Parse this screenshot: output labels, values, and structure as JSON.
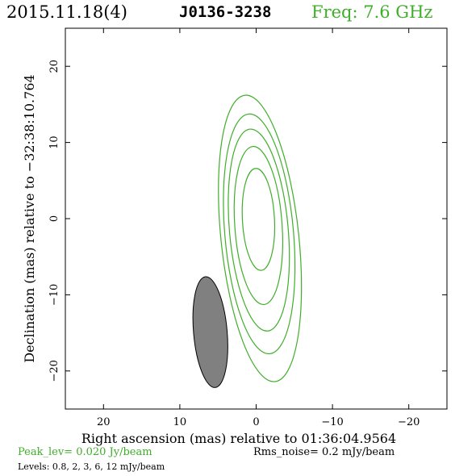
{
  "header": {
    "date": "2015.11.18(4)",
    "source": "J0136-3238",
    "freq": "Freq: 7.6 GHz"
  },
  "footer": {
    "peak": "Peak_lev=  0.020 Jy/beam",
    "rms": "Rms_noise=  0.2 mJy/beam",
    "levels": "Levels: 0.8,   2,   3,   6,  12 mJy/beam"
  },
  "colors": {
    "contour": "#3fae2a",
    "beam_fill": "#808080",
    "text": "#000000"
  },
  "chart_data": {
    "type": "contour",
    "xlabel": "Right ascension (mas) relative to 01:36:04.9564",
    "ylabel": "Declination (mas) relative to −32:38:10.764",
    "xlim": [
      25,
      -25
    ],
    "ylim": [
      -25,
      25
    ],
    "x_ticks": [
      "20",
      "10",
      "0",
      "−10",
      "−20"
    ],
    "x_tick_values": [
      20,
      10,
      0,
      -10,
      -20
    ],
    "y_ticks": [
      "20",
      "10",
      "0",
      "−10",
      "−20"
    ],
    "y_tick_values": [
      20,
      10,
      0,
      -10,
      -20
    ],
    "contour_levels_mJy": [
      0.8,
      2,
      3,
      6,
      12
    ],
    "contours": [
      {
        "level": 12,
        "cx": -0.3,
        "cy": -0.1,
        "ra": 2.1,
        "rb": 6.7,
        "tilt_deg": 3
      },
      {
        "level": 6,
        "cx": -0.3,
        "cy": -0.9,
        "ra": 3.1,
        "rb": 10.4,
        "tilt_deg": 4
      },
      {
        "level": 3,
        "cx": -0.35,
        "cy": -1.5,
        "ra": 3.85,
        "rb": 13.3,
        "tilt_deg": 5
      },
      {
        "level": 2,
        "cx": -0.4,
        "cy": -2.0,
        "ra": 4.5,
        "rb": 15.8,
        "tilt_deg": 5
      },
      {
        "level": 0.8,
        "cx": -0.5,
        "cy": -2.6,
        "ra": 5.1,
        "rb": 18.9,
        "tilt_deg": 6
      }
    ],
    "beam": {
      "cx": 6.0,
      "cy": -14.9,
      "ra": 2.2,
      "rb": 7.3,
      "tilt_deg": 5
    }
  }
}
